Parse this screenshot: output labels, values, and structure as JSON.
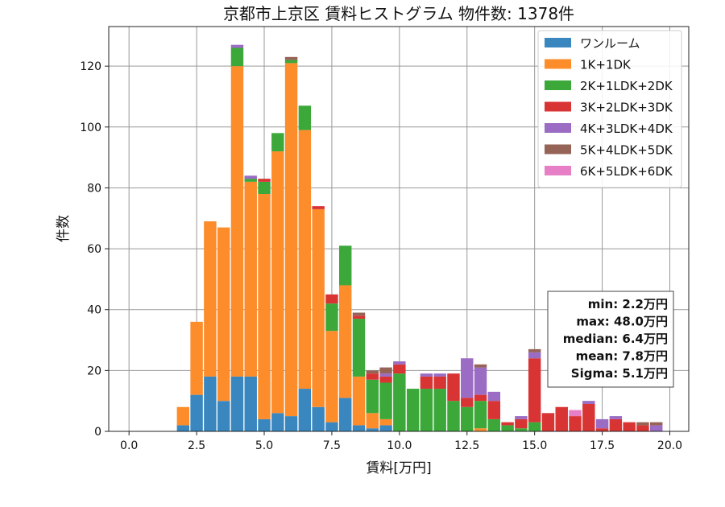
{
  "chart_data": {
    "type": "bar",
    "stacked": true,
    "title": "京都市上京区 賃料ヒストグラム  物件数: 1378件",
    "xlabel": "賃料[万円]",
    "ylabel": "件数",
    "xlim": [
      -0.75,
      20.7
    ],
    "ylim": [
      0,
      133
    ],
    "xticks": [
      0.0,
      2.5,
      5.0,
      7.5,
      10.0,
      12.5,
      15.0,
      17.5,
      20.0
    ],
    "xtick_labels": [
      "0.0",
      "2.5",
      "5.0",
      "7.5",
      "10.0",
      "12.5",
      "15.0",
      "17.5",
      "20.0"
    ],
    "yticks": [
      0,
      20,
      40,
      60,
      80,
      100,
      120
    ],
    "ytick_labels": [
      "0",
      "20",
      "40",
      "60",
      "80",
      "100",
      "120"
    ],
    "grid": true,
    "legend_position": "upper-right",
    "bin_width": 0.5,
    "bin_centers": [
      2.0,
      2.5,
      3.0,
      3.5,
      4.0,
      4.5,
      5.0,
      5.5,
      6.0,
      6.5,
      7.0,
      7.5,
      8.0,
      8.5,
      9.0,
      9.5,
      10.0,
      10.5,
      11.0,
      11.5,
      12.0,
      12.5,
      13.0,
      13.5,
      14.0,
      14.5,
      15.0,
      15.5,
      16.0,
      16.5,
      17.0,
      17.5,
      18.0,
      18.5,
      19.0,
      19.5
    ],
    "series": [
      {
        "name": "ワンルーム",
        "color": "#3a87c0",
        "values": [
          2,
          12,
          18,
          10,
          18,
          18,
          4,
          6,
          5,
          14,
          8,
          3,
          11,
          2,
          1,
          2,
          0,
          0,
          0,
          0,
          0,
          0,
          0,
          0,
          0,
          0,
          0,
          0,
          0,
          0,
          0,
          0,
          0,
          0,
          0,
          0
        ]
      },
      {
        "name": "1K+1DK",
        "color": "#fd8c2b",
        "values": [
          6,
          24,
          51,
          57,
          102,
          64,
          74,
          86,
          116,
          85,
          65,
          30,
          37,
          16,
          5,
          2,
          0,
          0,
          0,
          0,
          0,
          0,
          1,
          0,
          0,
          0,
          0,
          0,
          0,
          0,
          0,
          0,
          0,
          0,
          0,
          0
        ]
      },
      {
        "name": "2K+1LDK+2DK",
        "color": "#3ca83a",
        "values": [
          0,
          0,
          0,
          0,
          6,
          1,
          4,
          6,
          1,
          8,
          0,
          9,
          13,
          19,
          11,
          12,
          19,
          14,
          14,
          14,
          10,
          8,
          9,
          4,
          2,
          1,
          3,
          0,
          0,
          0,
          0,
          0,
          0,
          0,
          0,
          0
        ]
      },
      {
        "name": "3K+2LDK+3DK",
        "color": "#d93434",
        "values": [
          0,
          0,
          0,
          0,
          0,
          0,
          1,
          0,
          0,
          0,
          1,
          3,
          0,
          1,
          2,
          2,
          3,
          0,
          4,
          4,
          9,
          3,
          2,
          6,
          1,
          3,
          21,
          6,
          8,
          5,
          9,
          1,
          4,
          3,
          2,
          0
        ]
      },
      {
        "name": "4K+3LDK+4DK",
        "color": "#9a6cc3",
        "values": [
          0,
          0,
          0,
          0,
          1,
          1,
          0,
          0,
          0,
          0,
          0,
          0,
          0,
          0,
          0,
          1,
          1,
          0,
          1,
          1,
          0,
          13,
          9,
          3,
          0,
          1,
          2,
          0,
          0,
          0,
          1,
          3,
          1,
          0,
          0,
          2
        ]
      },
      {
        "name": "5K+4LDK+5DK",
        "color": "#966357",
        "values": [
          0,
          0,
          0,
          0,
          0,
          0,
          0,
          0,
          1,
          0,
          0,
          0,
          0,
          1,
          1,
          2,
          0,
          0,
          0,
          0,
          0,
          0,
          1,
          0,
          0,
          0,
          1,
          0,
          0,
          0,
          0,
          0,
          0,
          0,
          1,
          1
        ]
      },
      {
        "name": "6K+5LDK+6DK",
        "color": "#e67fc6",
        "values": [
          0,
          0,
          0,
          0,
          0,
          0,
          0,
          0,
          0,
          0,
          0,
          0,
          0,
          0,
          0,
          0,
          0,
          0,
          0,
          0,
          0,
          0,
          0,
          0,
          0,
          0,
          0,
          0,
          0,
          2,
          0,
          0,
          0,
          0,
          0,
          0
        ]
      }
    ],
    "stats_box": [
      "min: 2.2万円",
      "max: 48.0万円",
      "median: 6.4万円",
      "mean: 7.8万円",
      "Sigma: 5.1万円"
    ]
  }
}
